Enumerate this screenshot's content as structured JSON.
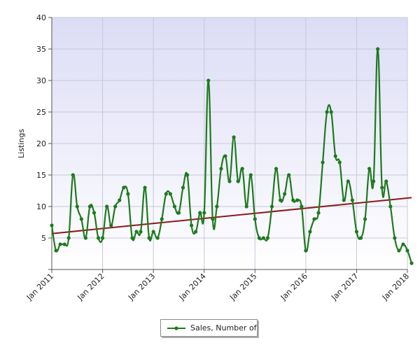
{
  "chart_data": {
    "type": "line",
    "ylabel": "Listings",
    "xlabel": "",
    "ylim": [
      0,
      40
    ],
    "yticks": [
      5,
      10,
      15,
      20,
      25,
      30,
      35,
      40
    ],
    "xticks": [
      "Jan 2011",
      "Jan 2012",
      "Jan 2013",
      "Jan 2014",
      "Jan 2015",
      "Jan 2016",
      "Jan 2017",
      "Jan 2018"
    ],
    "x_start": "2011-01",
    "grid": true,
    "legend_position": "bottom-center",
    "series": [
      {
        "name": "Sales, Number of",
        "color": "#1e7a1e",
        "values": [
          7,
          3,
          4,
          4,
          5,
          15,
          10,
          8,
          5,
          10,
          9,
          5,
          5,
          10,
          7,
          10,
          11,
          13,
          12,
          5,
          6,
          6,
          13,
          5,
          6,
          5,
          8,
          12,
          12,
          10,
          9,
          13,
          15,
          7,
          6,
          9,
          9,
          30,
          8,
          10,
          16,
          18,
          14,
          21,
          14,
          16,
          10,
          15,
          8,
          5,
          5,
          5,
          10,
          16,
          11,
          12,
          15,
          11,
          11,
          10,
          3,
          6,
          8,
          9,
          17,
          25,
          25,
          18,
          17,
          11,
          14,
          11,
          6,
          5,
          8,
          16,
          14,
          35,
          13,
          14,
          10,
          5,
          3,
          4,
          3,
          1
        ]
      }
    ],
    "trendline": {
      "start": 5.7,
      "end": 11.4,
      "color": "#8b1a1a"
    }
  }
}
